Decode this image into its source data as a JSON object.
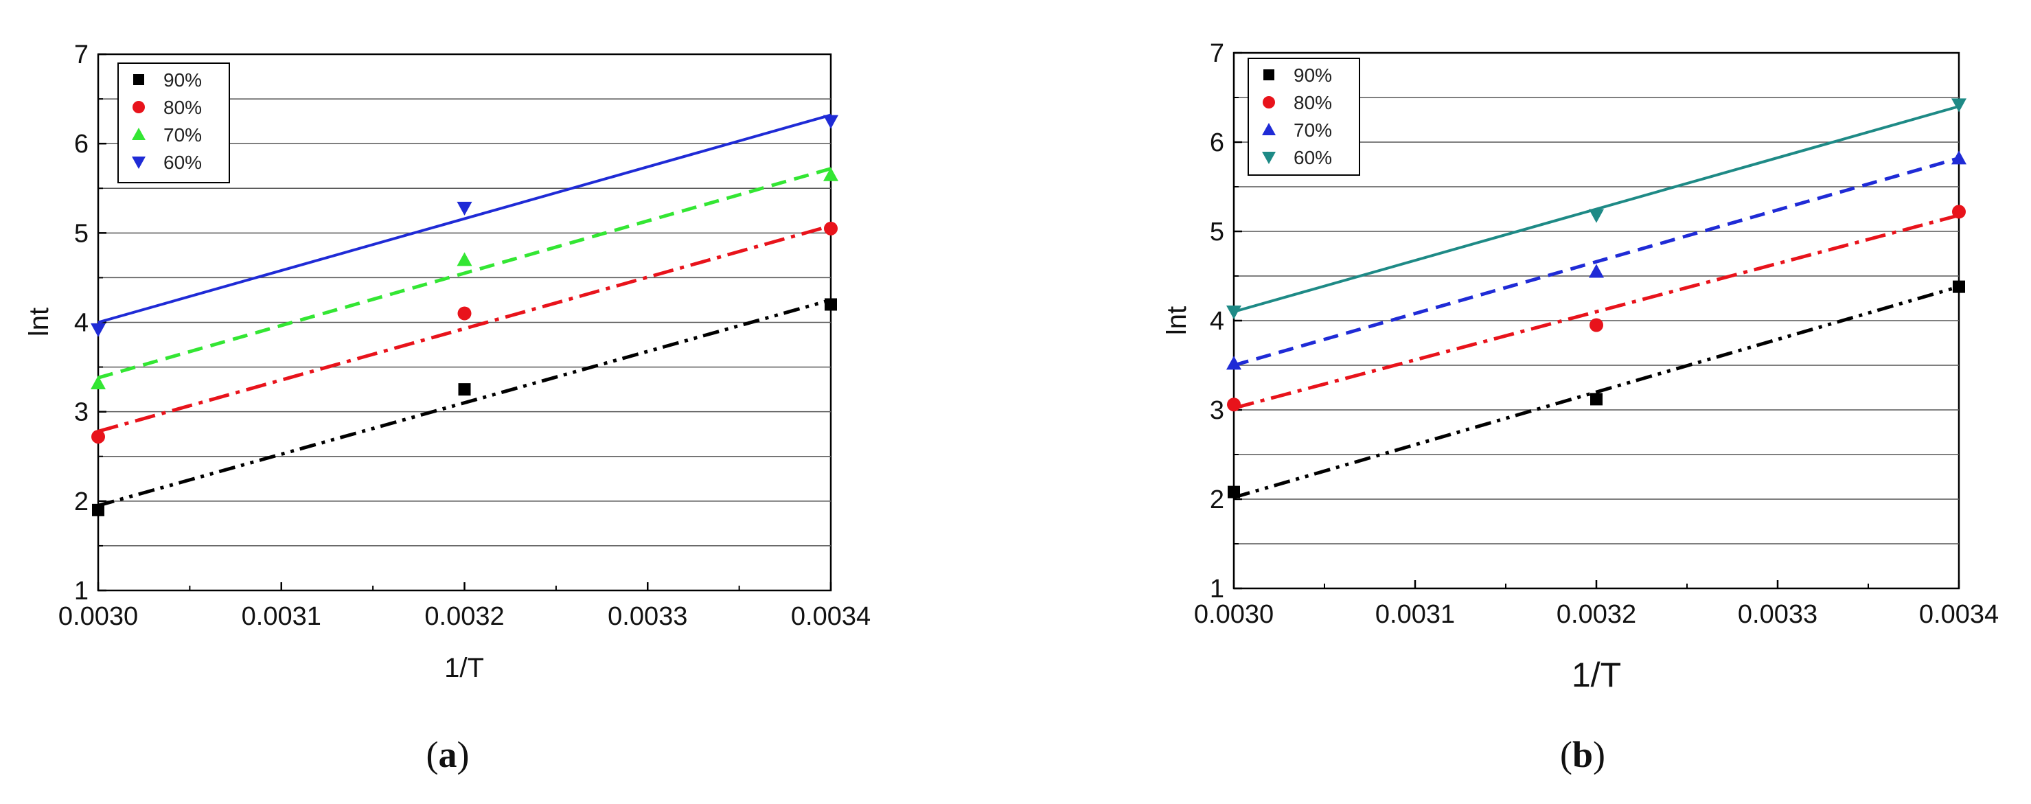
{
  "chart_data": [
    {
      "type": "scatter",
      "panel": "a",
      "caption_letter": "a",
      "xlabel": "1/T",
      "ylabel": "lnt",
      "xlim": [
        0.003,
        0.0034
      ],
      "ylim": [
        1,
        7
      ],
      "xticks": [
        "0.0030",
        "0.0031",
        "0.0032",
        "0.0033",
        "0.0034"
      ],
      "yticks": [
        "1",
        "2",
        "3",
        "4",
        "5",
        "6",
        "7"
      ],
      "x": [
        0.003,
        0.0032,
        0.0034
      ],
      "legend_position": "top-left",
      "series": [
        {
          "name": "90%",
          "marker": "square",
          "color": "#000000",
          "line": "dash-dot-dot",
          "values": [
            1.9,
            3.25,
            4.2
          ],
          "fit": [
            1.95,
            4.25
          ]
        },
        {
          "name": "80%",
          "marker": "circle",
          "color": "#e8131b",
          "line": "dash-dot",
          "values": [
            2.72,
            4.1,
            5.05
          ],
          "fit": [
            2.78,
            5.08
          ]
        },
        {
          "name": "70%",
          "marker": "triangle-up",
          "color": "#33e633",
          "line": "dash",
          "values": [
            3.32,
            4.7,
            5.65
          ],
          "fit": [
            3.38,
            5.72
          ]
        },
        {
          "name": "60%",
          "marker": "triangle-down",
          "color": "#1f2bd6",
          "line": "solid",
          "values": [
            3.92,
            5.28,
            6.25
          ],
          "fit": [
            4.0,
            6.32
          ]
        }
      ]
    },
    {
      "type": "scatter",
      "panel": "b",
      "caption_letter": "b",
      "xlabel": "1/T",
      "ylabel": "lnt",
      "xlim": [
        0.003,
        0.0034
      ],
      "ylim": [
        1,
        7
      ],
      "xticks": [
        "0.0030",
        "0.0031",
        "0.0032",
        "0.0033",
        "0.0034"
      ],
      "yticks": [
        "1",
        "2",
        "3",
        "4",
        "5",
        "6",
        "7"
      ],
      "x": [
        0.003,
        0.0032,
        0.0034
      ],
      "legend_position": "top-left",
      "series": [
        {
          "name": "90%",
          "marker": "square",
          "color": "#000000",
          "line": "dash-dot-dot",
          "values": [
            2.08,
            3.12,
            4.38
          ],
          "fit": [
            2.02,
            4.38
          ]
        },
        {
          "name": "80%",
          "marker": "circle",
          "color": "#e8131b",
          "line": "dash-dot",
          "values": [
            3.06,
            3.95,
            5.22
          ],
          "fit": [
            3.02,
            5.18
          ]
        },
        {
          "name": "70%",
          "marker": "triangle-up",
          "color": "#1f2bd6",
          "line": "dash",
          "values": [
            3.52,
            4.55,
            5.82
          ],
          "fit": [
            3.5,
            5.82
          ]
        },
        {
          "name": "60%",
          "marker": "triangle-down",
          "color": "#1e8a86",
          "line": "solid",
          "values": [
            4.1,
            5.18,
            6.42
          ],
          "fit": [
            4.1,
            6.4
          ]
        }
      ]
    }
  ]
}
